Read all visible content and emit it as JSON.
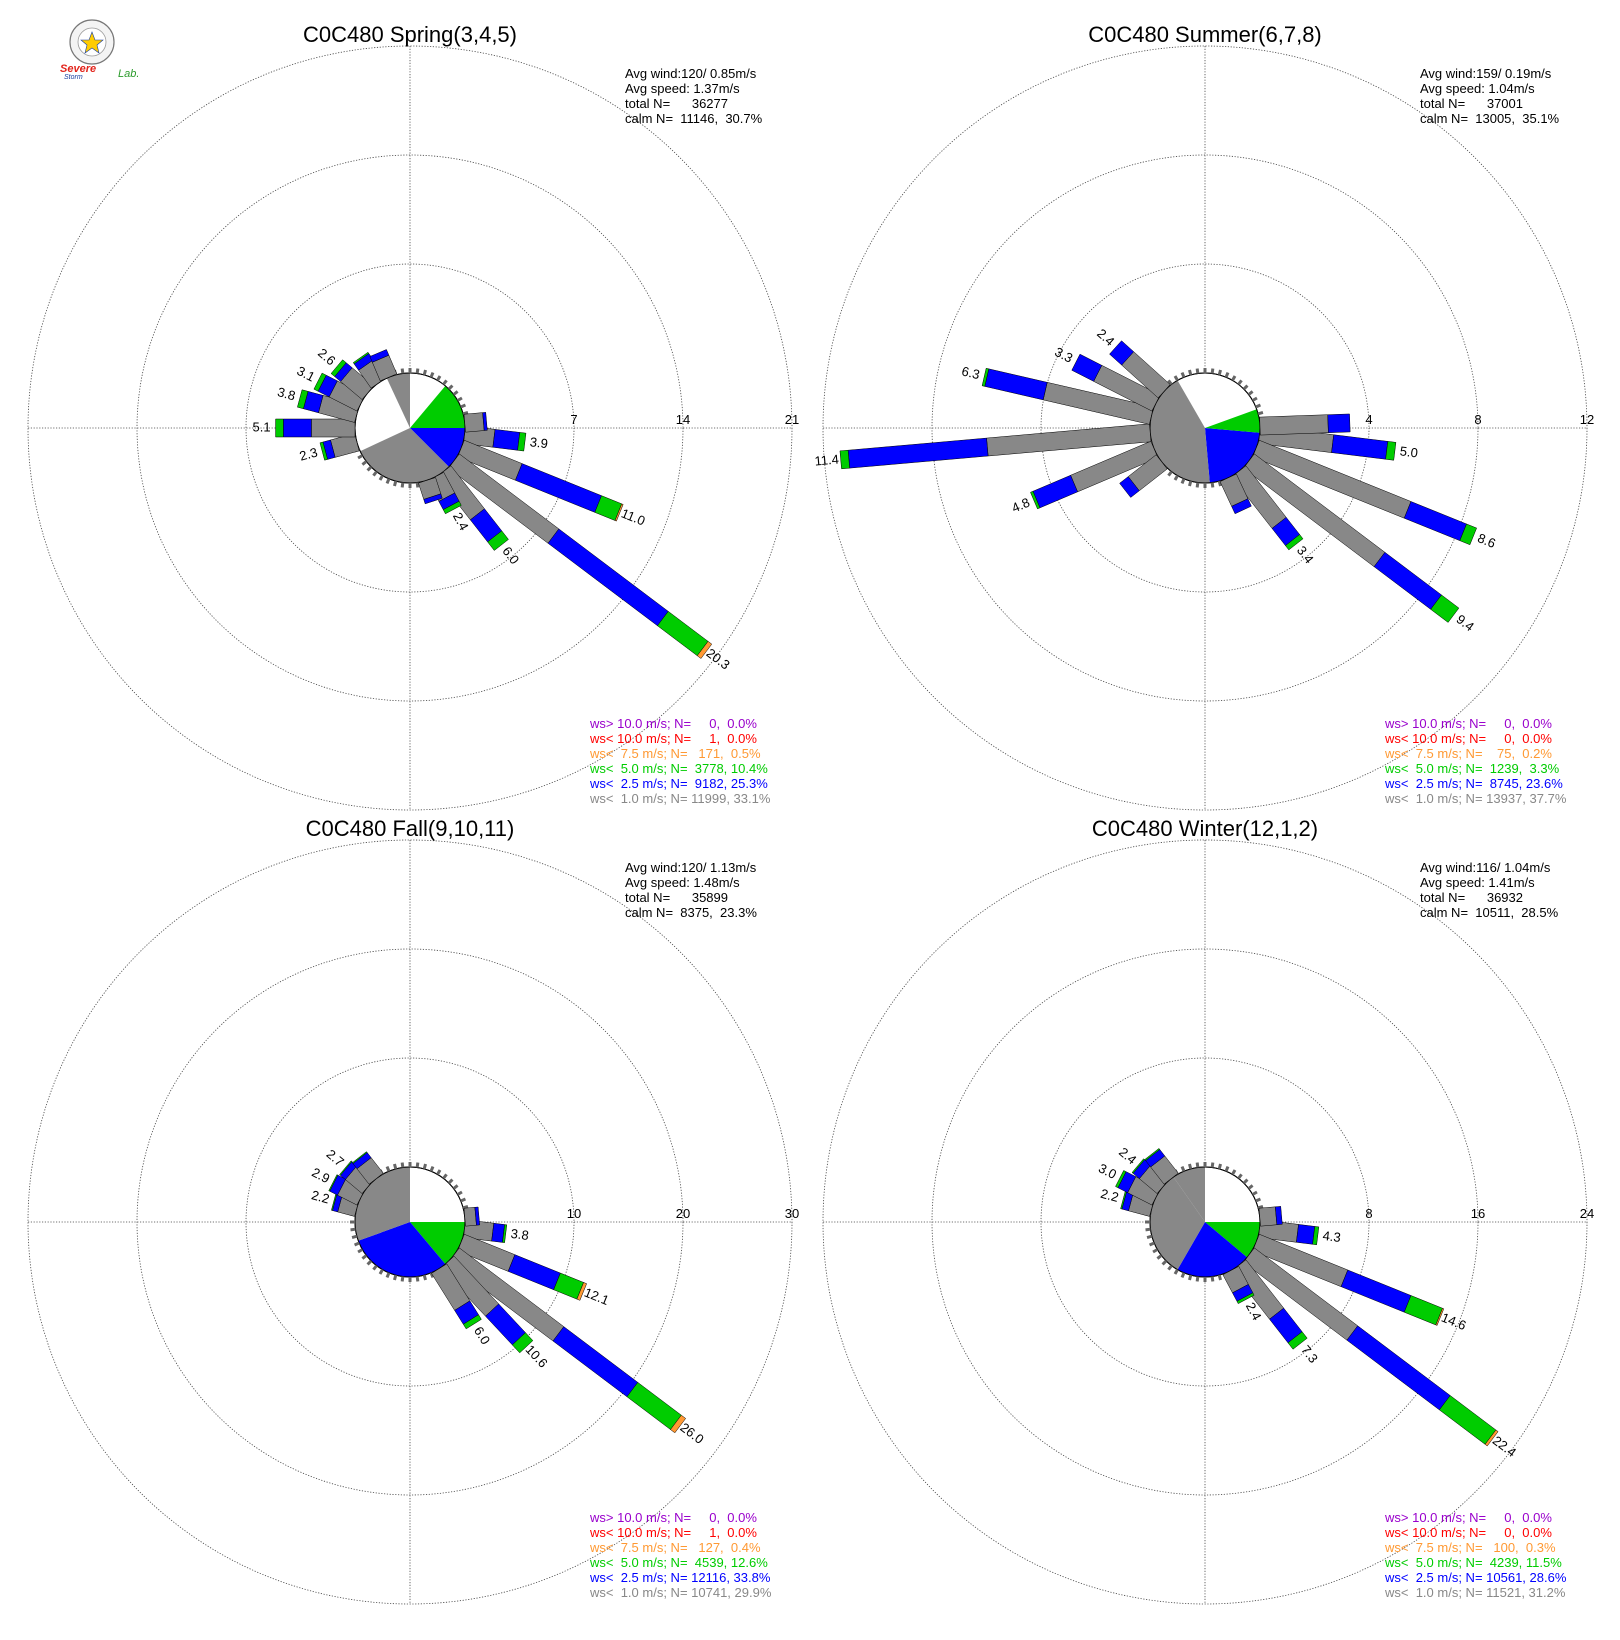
{
  "logo": {
    "text_line1": "Severe",
    "text_line2": "Storm",
    "text_line3": "Lab."
  },
  "colors": {
    "gray": "#888888",
    "blue": "#0000ff",
    "green": "#00cc00",
    "orange": "#ff9933",
    "red": "#ff0000",
    "purple": "#9900cc"
  },
  "chart_data": [
    {
      "type": "wind-rose",
      "title": "C0C480 Spring(3,4,5)",
      "stats": [
        "Avg wind:120/ 0.85m/s",
        "Avg speed: 1.37m/s",
        "total N=      36277",
        "calm N=  11146,  30.7%"
      ],
      "ring_labels": [
        "7",
        "14",
        "21"
      ],
      "rmax": 21,
      "calm_sectors": [
        [
          90,
          135,
          "blue"
        ],
        [
          135,
          245,
          "gray"
        ],
        [
          335,
          360,
          "gray"
        ],
        [
          40,
          90,
          "green"
        ]
      ],
      "petals": [
        {
          "dir": 97,
          "total": 3.9,
          "segs": [
            1.9,
            1.6,
            0.4
          ],
          "label": "3.9"
        },
        {
          "dir": 112,
          "total": 11.0,
          "segs": [
            4.0,
            5.5,
            1.4,
            0.1
          ],
          "label": "11.0"
        },
        {
          "dir": 127,
          "total": 20.3,
          "segs": [
            8.0,
            8.8,
            3.2,
            0.3
          ],
          "label": "20.3"
        },
        {
          "dir": 142,
          "total": 6.0,
          "segs": [
            3.5,
            1.8,
            0.7
          ],
          "label": "6.0"
        },
        {
          "dir": 152,
          "total": 2.4,
          "segs": [
            1.5,
            0.6,
            0.3
          ],
          "label": "2.4"
        },
        {
          "dir": 255,
          "total": 2.3,
          "segs": [
            1.6,
            0.5,
            0.2
          ],
          "label": "2.3"
        },
        {
          "dir": 270,
          "total": 5.1,
          "segs": [
            2.8,
            1.8,
            0.5
          ],
          "label": "5.1"
        },
        {
          "dir": 285,
          "total": 3.8,
          "segs": [
            2.4,
            1.0,
            0.4
          ],
          "label": "3.8"
        },
        {
          "dir": 297,
          "total": 3.1,
          "segs": [
            2.0,
            0.8,
            0.3
          ],
          "label": "3.1"
        },
        {
          "dir": 310,
          "total": 2.6,
          "segs": [
            1.8,
            0.5,
            0.3
          ],
          "label": "2.6"
        },
        {
          "dir": 325,
          "total": 2.0,
          "segs": [
            1.4,
            0.5,
            0.1
          ],
          "label": ""
        },
        {
          "dir": 337,
          "total": 1.7,
          "segs": [
            1.3,
            0.4
          ],
          "label": ""
        },
        {
          "dir": 85,
          "total": 1.4,
          "segs": [
            1.2,
            0.2
          ],
          "label": ""
        },
        {
          "dir": 162,
          "total": 1.4,
          "segs": [
            1.1,
            0.3
          ],
          "label": ""
        }
      ],
      "legend": [
        {
          "text": "ws> 10.0 m/s; N=     0,  0.0%",
          "color": "purple"
        },
        {
          "text": "ws< 10.0 m/s; N=     1,  0.0%",
          "color": "red"
        },
        {
          "text": "ws<  7.5 m/s; N=   171,  0.5%",
          "color": "orange"
        },
        {
          "text": "ws<  5.0 m/s; N=  3778, 10.4%",
          "color": "green"
        },
        {
          "text": "ws<  2.5 m/s; N=  9182, 25.3%",
          "color": "blue"
        },
        {
          "text": "ws<  1.0 m/s; N= 11999, 33.1%",
          "color": "gray"
        }
      ]
    },
    {
      "type": "wind-rose",
      "title": "C0C480 Summer(6,7,8)",
      "stats": [
        "Avg wind:159/ 0.19m/s",
        "Avg speed: 1.04m/s",
        "total N=      37001",
        "calm N=  13005,  35.1%"
      ],
      "ring_labels": [
        "4",
        "8",
        "12"
      ],
      "rmax": 12,
      "calm_sectors": [
        [
          95,
          175,
          "blue"
        ],
        [
          175,
          330,
          "gray"
        ],
        [
          70,
          95,
          "green"
        ]
      ],
      "petals": [
        {
          "dir": 97,
          "total": 5.0,
          "segs": [
            2.7,
            2.0,
            0.3
          ],
          "label": "5.0"
        },
        {
          "dir": 112,
          "total": 8.6,
          "segs": [
            6.0,
            2.2,
            0.4
          ],
          "label": "8.6"
        },
        {
          "dir": 127,
          "total": 9.4,
          "segs": [
            6.0,
            2.6,
            0.8
          ],
          "label": "9.4"
        },
        {
          "dir": 142,
          "total": 3.4,
          "segs": [
            2.4,
            0.8,
            0.2
          ],
          "label": "3.4"
        },
        {
          "dir": 155,
          "total": 1.3,
          "segs": [
            1.0,
            0.3
          ],
          "label": ""
        },
        {
          "dir": 247,
          "total": 4.8,
          "segs": [
            3.2,
            1.5,
            0.1
          ],
          "label": "4.8"
        },
        {
          "dir": 265,
          "total": 11.4,
          "segs": [
            6.0,
            5.1,
            0.3
          ],
          "label": "11.4"
        },
        {
          "dir": 283,
          "total": 6.3,
          "segs": [
            4.0,
            2.2,
            0.1
          ],
          "label": "6.3"
        },
        {
          "dir": 297,
          "total": 3.3,
          "segs": [
            2.4,
            0.9
          ],
          "label": "3.3"
        },
        {
          "dir": 312,
          "total": 2.4,
          "segs": [
            1.8,
            0.6
          ],
          "label": "2.4"
        },
        {
          "dir": 88,
          "total": 3.3,
          "segs": [
            2.5,
            0.8
          ],
          "label": ""
        },
        {
          "dir": 232,
          "total": 1.7,
          "segs": [
            1.3,
            0.4
          ],
          "label": ""
        }
      ],
      "legend": [
        {
          "text": "ws> 10.0 m/s; N=     0,  0.0%",
          "color": "purple"
        },
        {
          "text": "ws< 10.0 m/s; N=     0,  0.0%",
          "color": "red"
        },
        {
          "text": "ws<  7.5 m/s; N=    75,  0.2%",
          "color": "orange"
        },
        {
          "text": "ws<  5.0 m/s; N=  1239,  3.3%",
          "color": "green"
        },
        {
          "text": "ws<  2.5 m/s; N=  8745, 23.6%",
          "color": "blue"
        },
        {
          "text": "ws<  1.0 m/s; N= 13937, 37.7%",
          "color": "gray"
        }
      ]
    },
    {
      "type": "wind-rose",
      "title": "C0C480 Fall(9,10,11)",
      "stats": [
        "Avg wind:120/ 1.13m/s",
        "Avg speed: 1.48m/s",
        "total N=      35899",
        "calm N=  8375,  23.3%"
      ],
      "ring_labels": [
        "10",
        "20",
        "30"
      ],
      "rmax": 30,
      "calm_sectors": [
        [
          90,
          140,
          "green"
        ],
        [
          140,
          250,
          "blue"
        ],
        [
          250,
          360,
          "gray"
        ]
      ],
      "petals": [
        {
          "dir": 97,
          "total": 3.8,
          "segs": [
            2.6,
            1.0,
            0.2
          ],
          "label": "3.8"
        },
        {
          "dir": 112,
          "total": 12.1,
          "segs": [
            5.0,
            4.5,
            2.3,
            0.3
          ],
          "label": "12.1"
        },
        {
          "dir": 127,
          "total": 26.0,
          "segs": [
            12.0,
            8.5,
            5.0,
            0.5
          ],
          "label": "26.0"
        },
        {
          "dir": 137,
          "total": 10.6,
          "segs": [
            6.0,
            3.6,
            1.0
          ],
          "label": "10.6"
        },
        {
          "dir": 148,
          "total": 6.0,
          "segs": [
            4.0,
            1.5,
            0.5
          ],
          "label": "6.0"
        },
        {
          "dir": 285,
          "total": 2.2,
          "segs": [
            1.6,
            0.5,
            0.1
          ],
          "label": "2.2"
        },
        {
          "dir": 297,
          "total": 2.9,
          "segs": [
            2.0,
            0.8,
            0.1
          ],
          "label": "2.9"
        },
        {
          "dir": 310,
          "total": 2.7,
          "segs": [
            2.0,
            0.6,
            0.1
          ],
          "label": "2.7"
        },
        {
          "dir": 322,
          "total": 2.5,
          "segs": [
            1.8,
            0.6,
            0.1
          ],
          "label": ""
        },
        {
          "dir": 85,
          "total": 1.3,
          "segs": [
            1.0,
            0.3
          ],
          "label": ""
        }
      ],
      "legend": [
        {
          "text": "ws> 10.0 m/s; N=     0,  0.0%",
          "color": "purple"
        },
        {
          "text": "ws< 10.0 m/s; N=     1,  0.0%",
          "color": "red"
        },
        {
          "text": "ws<  7.5 m/s; N=   127,  0.4%",
          "color": "orange"
        },
        {
          "text": "ws<  5.0 m/s; N=  4539, 12.6%",
          "color": "green"
        },
        {
          "text": "ws<  2.5 m/s; N= 12116, 33.8%",
          "color": "blue"
        },
        {
          "text": "ws<  1.0 m/s; N= 10741, 29.9%",
          "color": "gray"
        }
      ]
    },
    {
      "type": "wind-rose",
      "title": "C0C480 Winter(12,1,2)",
      "stats": [
        "Avg wind:116/ 1.04m/s",
        "Avg speed: 1.41m/s",
        "total N=      36932",
        "calm N=  10511,  28.5%"
      ],
      "ring_labels": [
        "8",
        "16",
        "24"
      ],
      "rmax": 24,
      "calm_sectors": [
        [
          90,
          130,
          "green"
        ],
        [
          130,
          210,
          "blue"
        ],
        [
          210,
          325,
          "gray"
        ],
        [
          325,
          360,
          "gray"
        ]
      ],
      "petals": [
        {
          "dir": 97,
          "total": 4.3,
          "segs": [
            2.8,
            1.2,
            0.3
          ],
          "label": "4.3"
        },
        {
          "dir": 112,
          "total": 14.6,
          "segs": [
            7.0,
            5.0,
            2.5,
            0.1
          ],
          "label": "14.6"
        },
        {
          "dir": 127,
          "total": 22.4,
          "segs": [
            9.5,
            8.5,
            4.2,
            0.2
          ],
          "label": "22.4"
        },
        {
          "dir": 142,
          "total": 7.3,
          "segs": [
            4.5,
            2.2,
            0.6
          ],
          "label": "7.3"
        },
        {
          "dir": 152,
          "total": 2.4,
          "segs": [
            1.5,
            0.7,
            0.2
          ],
          "label": "2.4"
        },
        {
          "dir": 285,
          "total": 2.2,
          "segs": [
            1.6,
            0.5,
            0.1
          ],
          "label": "2.2"
        },
        {
          "dir": 297,
          "total": 3.0,
          "segs": [
            2.0,
            0.8,
            0.2
          ],
          "label": "3.0"
        },
        {
          "dir": 310,
          "total": 2.4,
          "segs": [
            1.7,
            0.6,
            0.1
          ],
          "label": "2.4"
        },
        {
          "dir": 322,
          "total": 2.3,
          "segs": [
            1.6,
            0.6,
            0.1
          ],
          "label": ""
        },
        {
          "dir": 85,
          "total": 1.6,
          "segs": [
            1.2,
            0.4
          ],
          "label": ""
        }
      ],
      "legend": [
        {
          "text": "ws> 10.0 m/s; N=     0,  0.0%",
          "color": "purple"
        },
        {
          "text": "ws< 10.0 m/s; N=     0,  0.0%",
          "color": "red"
        },
        {
          "text": "ws<  7.5 m/s; N=   100,  0.3%",
          "color": "orange"
        },
        {
          "text": "ws<  5.0 m/s; N=  4239, 11.5%",
          "color": "green"
        },
        {
          "text": "ws<  2.5 m/s; N= 10561, 28.6%",
          "color": "blue"
        },
        {
          "text": "ws<  1.0 m/s; N= 11521, 31.2%",
          "color": "gray"
        }
      ]
    }
  ]
}
